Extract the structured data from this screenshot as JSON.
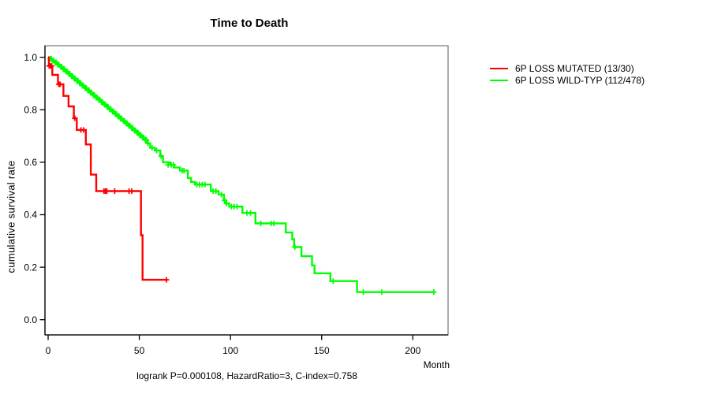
{
  "title": "Time to Death",
  "ylabel": "cumulative survival rate",
  "xlabel": "Month",
  "footer": "logrank P=0.000108, HazardRatio=3, C-index=0.758",
  "colors": {
    "mutated": "#FF0000",
    "wildtype": "#00FF00",
    "box_border": "#808080",
    "axis": "#000000",
    "background": "#FFFFFF"
  },
  "legend": {
    "items": [
      {
        "label": "6P LOSS MUTATED (13/30)",
        "color_key": "mutated"
      },
      {
        "label": "6P LOSS WILD-TYP (112/478)",
        "color_key": "wildtype"
      }
    ]
  },
  "chart_data": {
    "type": "line",
    "subtype": "kaplan-meier-step",
    "title": "Time to Death",
    "xlabel": "Month",
    "ylabel": "cumulative survival rate",
    "annotation": "logrank P=0.000108, HazardRatio=3, C-index=0.758",
    "xlim": [
      0,
      219
    ],
    "ylim": [
      0,
      1
    ],
    "x_ticks": [
      0,
      50,
      100,
      150,
      200
    ],
    "x_tick_labels": [
      "0",
      "50",
      "100",
      "150",
      "200"
    ],
    "y_ticks": [
      0.0,
      0.2,
      0.4,
      0.6,
      0.8,
      1.0
    ],
    "y_tick_labels": [
      "0.0",
      "0.2",
      "0.4",
      "0.6",
      "0.8",
      "1.0"
    ],
    "grid": false,
    "legend_position": "top-right-outside",
    "series": [
      {
        "name": "6P LOSS WILD-TYP (112/478)",
        "color": "#00FF00",
        "end_month": 211.5,
        "steps": [
          [
            0,
            1.0
          ],
          [
            1,
            0.994
          ],
          [
            2,
            0.988
          ],
          [
            3.5,
            0.981
          ],
          [
            5,
            0.972
          ],
          [
            6.5,
            0.964
          ],
          [
            8,
            0.955
          ],
          [
            9.5,
            0.946
          ],
          [
            11,
            0.937
          ],
          [
            12.5,
            0.928
          ],
          [
            14,
            0.919
          ],
          [
            15.5,
            0.91
          ],
          [
            17,
            0.901
          ],
          [
            18.5,
            0.892
          ],
          [
            20,
            0.883
          ],
          [
            21.5,
            0.874
          ],
          [
            23,
            0.865
          ],
          [
            24.5,
            0.856
          ],
          [
            26,
            0.847
          ],
          [
            27.5,
            0.838
          ],
          [
            29,
            0.829
          ],
          [
            30.5,
            0.82
          ],
          [
            32,
            0.811
          ],
          [
            33.5,
            0.802
          ],
          [
            35,
            0.793
          ],
          [
            36.5,
            0.784
          ],
          [
            38,
            0.775
          ],
          [
            39.5,
            0.766
          ],
          [
            41,
            0.757
          ],
          [
            42.5,
            0.748
          ],
          [
            44,
            0.739
          ],
          [
            45.5,
            0.73
          ],
          [
            47,
            0.721
          ],
          [
            48.5,
            0.712
          ],
          [
            50,
            0.703
          ],
          [
            51.5,
            0.694
          ],
          [
            53,
            0.685
          ],
          [
            54.5,
            0.672
          ],
          [
            56,
            0.655
          ],
          [
            58.5,
            0.645
          ],
          [
            61.5,
            0.623
          ],
          [
            63,
            0.6
          ],
          [
            66.8,
            0.59
          ],
          [
            69,
            0.58
          ],
          [
            72.3,
            0.568
          ],
          [
            76.6,
            0.54
          ],
          [
            78.4,
            0.525
          ],
          [
            80.5,
            0.515
          ],
          [
            89.2,
            0.49
          ],
          [
            93.5,
            0.477
          ],
          [
            96.4,
            0.455
          ],
          [
            97.5,
            0.443
          ],
          [
            99.3,
            0.431
          ],
          [
            106.5,
            0.407
          ],
          [
            113.7,
            0.367
          ],
          [
            130.3,
            0.332
          ],
          [
            133.9,
            0.307
          ],
          [
            134.9,
            0.277
          ],
          [
            138.9,
            0.242
          ],
          [
            144.7,
            0.207
          ],
          [
            146.1,
            0.177
          ],
          [
            154.8,
            0.147
          ],
          [
            169.4,
            0.105
          ]
        ],
        "censors": [
          [
            1.2,
            0.994
          ],
          [
            1.8,
            0.994
          ],
          [
            2.4,
            0.988
          ],
          [
            3.0,
            0.988
          ],
          [
            3.8,
            0.981
          ],
          [
            4.4,
            0.981
          ],
          [
            5.3,
            0.972
          ],
          [
            5.9,
            0.972
          ],
          [
            6.8,
            0.964
          ],
          [
            7.4,
            0.964
          ],
          [
            8.3,
            0.955
          ],
          [
            8.9,
            0.955
          ],
          [
            9.8,
            0.946
          ],
          [
            10.4,
            0.946
          ],
          [
            11.3,
            0.937
          ],
          [
            11.9,
            0.937
          ],
          [
            12.8,
            0.928
          ],
          [
            13.4,
            0.928
          ],
          [
            14.3,
            0.919
          ],
          [
            14.9,
            0.919
          ],
          [
            15.8,
            0.91
          ],
          [
            16.4,
            0.91
          ],
          [
            17.3,
            0.901
          ],
          [
            17.9,
            0.901
          ],
          [
            18.8,
            0.892
          ],
          [
            19.4,
            0.892
          ],
          [
            20.3,
            0.883
          ],
          [
            20.9,
            0.883
          ],
          [
            21.8,
            0.874
          ],
          [
            22.4,
            0.874
          ],
          [
            23.3,
            0.865
          ],
          [
            23.9,
            0.865
          ],
          [
            24.8,
            0.856
          ],
          [
            25.4,
            0.856
          ],
          [
            26.3,
            0.847
          ],
          [
            26.9,
            0.847
          ],
          [
            27.8,
            0.838
          ],
          [
            28.4,
            0.838
          ],
          [
            29.3,
            0.829
          ],
          [
            29.9,
            0.829
          ],
          [
            30.8,
            0.82
          ],
          [
            31.4,
            0.82
          ],
          [
            32.3,
            0.811
          ],
          [
            32.9,
            0.811
          ],
          [
            33.8,
            0.802
          ],
          [
            34.4,
            0.802
          ],
          [
            35.3,
            0.793
          ],
          [
            35.9,
            0.793
          ],
          [
            36.8,
            0.784
          ],
          [
            37.4,
            0.784
          ],
          [
            38.3,
            0.775
          ],
          [
            38.9,
            0.775
          ],
          [
            39.8,
            0.766
          ],
          [
            40.4,
            0.766
          ],
          [
            41.3,
            0.757
          ],
          [
            41.9,
            0.757
          ],
          [
            42.8,
            0.748
          ],
          [
            43.4,
            0.748
          ],
          [
            44.3,
            0.739
          ],
          [
            44.9,
            0.739
          ],
          [
            45.8,
            0.73
          ],
          [
            46.4,
            0.73
          ],
          [
            47.3,
            0.721
          ],
          [
            47.9,
            0.721
          ],
          [
            48.8,
            0.712
          ],
          [
            49.4,
            0.712
          ],
          [
            50.3,
            0.703
          ],
          [
            50.9,
            0.703
          ],
          [
            51.8,
            0.694
          ],
          [
            52.4,
            0.694
          ],
          [
            53.3,
            0.685
          ],
          [
            53.9,
            0.685
          ],
          [
            54.8,
            0.672
          ],
          [
            57,
            0.655
          ],
          [
            59.5,
            0.645
          ],
          [
            62,
            0.623
          ],
          [
            65.8,
            0.59
          ],
          [
            67.5,
            0.59
          ],
          [
            68.7,
            0.59
          ],
          [
            73.5,
            0.568
          ],
          [
            74.5,
            0.568
          ],
          [
            81.5,
            0.515
          ],
          [
            83,
            0.515
          ],
          [
            84.5,
            0.515
          ],
          [
            86,
            0.515
          ],
          [
            90.5,
            0.49
          ],
          [
            92,
            0.49
          ],
          [
            95,
            0.477
          ],
          [
            96.8,
            0.455
          ],
          [
            97.8,
            0.443
          ],
          [
            100.5,
            0.431
          ],
          [
            102,
            0.431
          ],
          [
            103.6,
            0.431
          ],
          [
            109,
            0.407
          ],
          [
            111,
            0.407
          ],
          [
            116.6,
            0.367
          ],
          [
            122.3,
            0.367
          ],
          [
            123.8,
            0.367
          ],
          [
            135.3,
            0.277
          ],
          [
            156.3,
            0.147
          ],
          [
            172.9,
            0.105
          ],
          [
            183,
            0.105
          ],
          [
            211.5,
            0.105
          ]
        ]
      },
      {
        "name": "6P LOSS MUTATED (13/30)",
        "color": "#FF0000",
        "end_month": 65.5,
        "steps": [
          [
            0,
            1.0
          ],
          [
            0.4,
            0.967
          ],
          [
            2.3,
            0.933
          ],
          [
            5.4,
            0.897
          ],
          [
            8.4,
            0.853
          ],
          [
            11.2,
            0.813
          ],
          [
            14.1,
            0.768
          ],
          [
            15.7,
            0.723
          ],
          [
            20.7,
            0.668
          ],
          [
            23.4,
            0.553
          ],
          [
            26.4,
            0.49
          ],
          [
            50.9,
            0.322
          ],
          [
            51.8,
            0.152
          ]
        ],
        "censors": [
          [
            0.6,
            0.967
          ],
          [
            1.2,
            0.967
          ],
          [
            1.9,
            0.967
          ],
          [
            5.9,
            0.897
          ],
          [
            6.6,
            0.897
          ],
          [
            14.6,
            0.768
          ],
          [
            18.0,
            0.723
          ],
          [
            19.5,
            0.723
          ],
          [
            30.6,
            0.49
          ],
          [
            31.4,
            0.49
          ],
          [
            32.2,
            0.49
          ],
          [
            36.5,
            0.49
          ],
          [
            44.4,
            0.49
          ],
          [
            45.9,
            0.49
          ],
          [
            64.9,
            0.152
          ]
        ]
      }
    ]
  }
}
